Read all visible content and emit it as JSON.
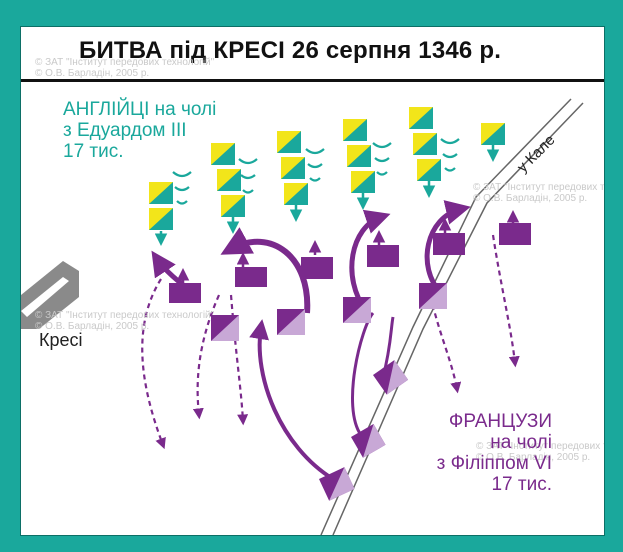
{
  "title": "БИТВА під КРЕСІ 26 серпня 1346 р.",
  "watermark": {
    "line1": "© ЗАТ \"Інститут передових технологій\"",
    "line2": "© О.В. Барладін, 2005 р."
  },
  "english": {
    "line1": "АНГЛІЙЦІ на чолі",
    "line2": "з Едуардом ІІІ",
    "line3": "17 тис.",
    "color": "#1aa89c",
    "knight_fill": "#f2e51a"
  },
  "french": {
    "line1": "ФРАНЦУЗИ",
    "line2": "на чолі",
    "line3": "з Філіппом VI",
    "line4": "17 тис.",
    "color": "#7a2a8c",
    "light_fill": "#c8a8d6"
  },
  "places": {
    "town": "Кресі",
    "road": "у Кале"
  },
  "icons": [
    "cavalry-unit-icon",
    "archer-chevron-icon",
    "arrow-icon"
  ]
}
